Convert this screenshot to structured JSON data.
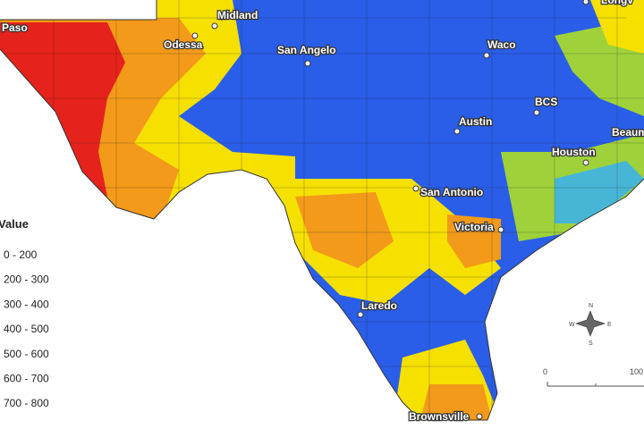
{
  "cities": [
    {
      "label": "Paso"
    },
    {
      "label": "Midland"
    },
    {
      "label": "Odessa"
    },
    {
      "label": "San Angelo"
    },
    {
      "label": "Waco"
    },
    {
      "label": "Longv"
    },
    {
      "label": "Austin"
    },
    {
      "label": "BCS"
    },
    {
      "label": "Houston"
    },
    {
      "label": "Beaum"
    },
    {
      "label": "San Antonio"
    },
    {
      "label": "Victoria"
    },
    {
      "label": "Laredo"
    },
    {
      "label": "Brownsville"
    }
  ],
  "legend": {
    "title": "Value",
    "items": [
      "0 - 200",
      "200 - 300",
      "300 - 400",
      "400 - 500",
      "500 - 600",
      "600 - 700",
      "700 - 800"
    ]
  },
  "scale_bar": {
    "labels": [
      "0",
      "100"
    ]
  },
  "compass": {
    "labels": [
      "N",
      "E",
      "S",
      "W"
    ]
  }
}
